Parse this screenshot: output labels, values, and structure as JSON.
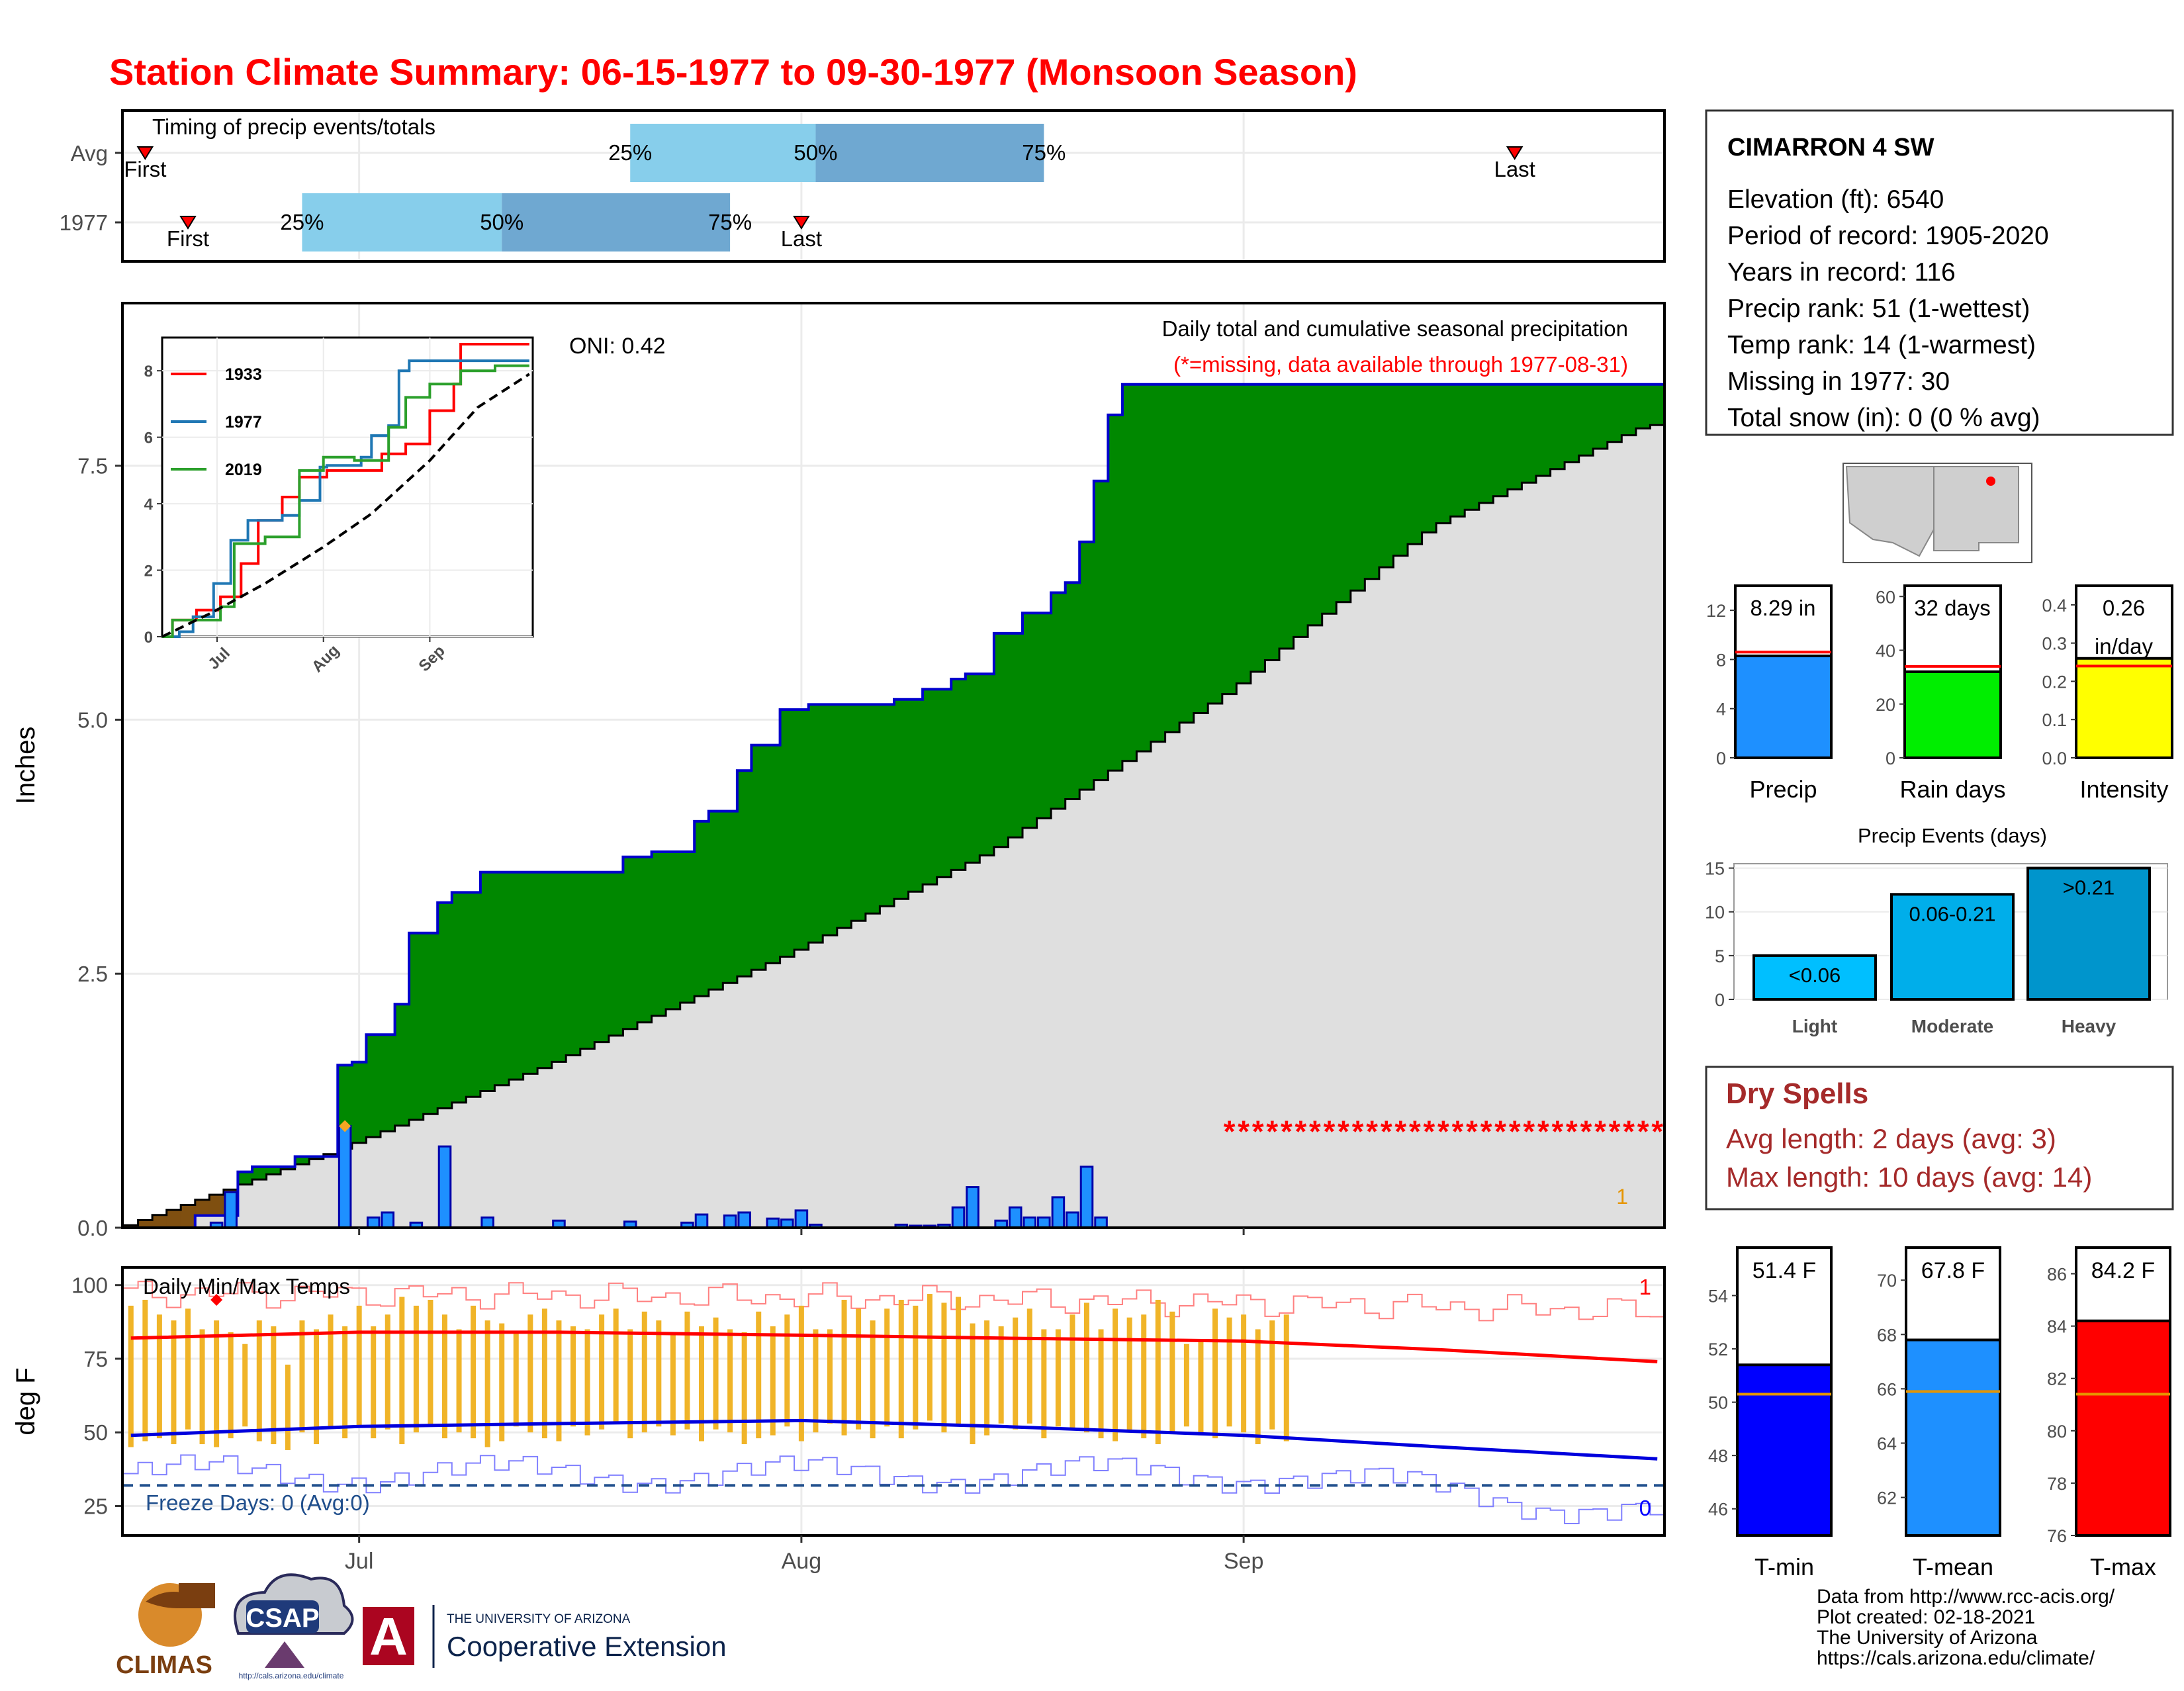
{
  "title": "Station Climate Summary: 06-15-1977 to 09-30-1977 (Monsoon Season)",
  "colors": {
    "title": "#ff0000",
    "green": "#008800",
    "blue_edge": "#0000cc",
    "bar_blue": "#1e90ff",
    "brown": "#7f4f10",
    "grey": "#dfdfdf",
    "orange": "#f0b428",
    "red": "#ff0000",
    "light_blue": "#87ceeb",
    "mid_blue": "#6fa8d1",
    "dark_red": "#a52a2a"
  },
  "timing": {
    "title": "Timing of precip events/totals",
    "rows": [
      "Avg",
      "1977"
    ],
    "first_label": "First",
    "last_label": "Last",
    "pct_labels": [
      "25%",
      "50%",
      "75%"
    ],
    "avg": {
      "first": "06-16",
      "p25": "07-20",
      "p50": "08-02",
      "p75": "08-18",
      "last": "09-20"
    },
    "y1977": {
      "first": "06-19",
      "p25": "06-27",
      "p50": "07-11",
      "p75": "07-27",
      "last": "08-01"
    }
  },
  "precip_panel": {
    "ylabel": "Inches",
    "y_ticks": [
      "0.0",
      "2.5",
      "5.0",
      "7.5"
    ],
    "x_ticks": [
      "Jul",
      "Aug",
      "Sep"
    ],
    "oni": "ONI: 0.42",
    "subtitle": "Daily total and cumulative seasonal precipitation",
    "missing_note": "(*=missing, data available through 1977-08-31)",
    "corner_value": "1",
    "missing_marker": "*"
  },
  "inset": {
    "y_ticks": [
      "0",
      "2",
      "4",
      "6",
      "8"
    ],
    "x_ticks": [
      "Jul",
      "Aug",
      "Sep"
    ],
    "legend": [
      "1933",
      "1977",
      "2019"
    ],
    "legend_colors": [
      "#ff0000",
      "#1f77b4",
      "#2ca02c"
    ]
  },
  "temp_panel": {
    "ylabel": "deg F",
    "title": "Daily Min/Max Temps",
    "y_ticks": [
      "25",
      "50",
      "75",
      "100"
    ],
    "freeze_label": "Freeze Days: 0 (Avg:0)",
    "right_top": "1",
    "right_bottom": "0"
  },
  "station": {
    "name": "CIMARRON 4 SW",
    "lines": [
      "Elevation (ft): 6540",
      "Period of record: 1905-2020",
      "Years in record: 116",
      "Precip rank: 51 (1-wettest)",
      "Temp rank: 14 (1-warmest)",
      "Missing in 1977: 30",
      "Total snow (in): 0 (0 % avg)"
    ]
  },
  "precip_gauges": [
    {
      "name": "Precip",
      "top_label": "8.29 in",
      "top_label2": "",
      "ticks": [
        "0",
        "4",
        "8",
        "12"
      ],
      "value": 8.29,
      "avg": 8.6,
      "max": 14,
      "color": "#1e90ff"
    },
    {
      "name": "Rain days",
      "top_label": "32 days",
      "top_label2": "",
      "ticks": [
        "0",
        "20",
        "40",
        "60"
      ],
      "value": 32,
      "avg": 34,
      "max": 64,
      "color": "#00ee00"
    },
    {
      "name": "Intensity",
      "top_label": "0.26",
      "top_label2": "in/day",
      "ticks": [
        "0.0",
        "0.1",
        "0.2",
        "0.3",
        "0.4"
      ],
      "value": 0.26,
      "avg": 0.24,
      "max": 0.45,
      "color": "#ffff00"
    }
  ],
  "events": {
    "title": "Precip Events (days)",
    "y_ticks": [
      "0",
      "5",
      "10",
      "15"
    ],
    "categories": [
      "Light",
      "Moderate",
      "Heavy"
    ],
    "labels": [
      "<0.06",
      "0.06-0.21",
      ">0.21"
    ],
    "values": [
      5,
      12,
      15
    ],
    "colors": [
      "#00bfff",
      "#00aeea",
      "#0095cc"
    ]
  },
  "dry_spells": {
    "title": "Dry Spells",
    "line1": "Avg length: 2 days (avg: 3)",
    "line2": "Max length: 10 days (avg: 14)"
  },
  "temp_gauges": [
    {
      "name": "T-min",
      "top_label": "51.4 F",
      "ticks": [
        "46",
        "48",
        "50",
        "52",
        "54"
      ],
      "value": 51.4,
      "avg": 50.3,
      "min": 45,
      "max": 55.8,
      "color": "#0000ff"
    },
    {
      "name": "T-mean",
      "top_label": "67.8 F",
      "ticks": [
        "62",
        "64",
        "66",
        "68",
        "70"
      ],
      "value": 67.8,
      "avg": 65.9,
      "min": 60.6,
      "max": 71.2,
      "color": "#1e90ff"
    },
    {
      "name": "T-max",
      "top_label": "84.2 F",
      "ticks": [
        "76",
        "78",
        "80",
        "82",
        "84",
        "86"
      ],
      "value": 84.2,
      "avg": 81.4,
      "min": 76,
      "max": 87,
      "color": "#ff0000"
    }
  ],
  "footer": {
    "lines": [
      "Data from http://www.rcc-acis.org/",
      "Plot created: 02-18-2021",
      "The University of Arizona",
      "https://cals.arizona.edu/climate/"
    ],
    "climas": "CLIMAS",
    "csap": "CSAP",
    "csap_url": "http://cals.arizona.edu/climate",
    "ua_small": "THE UNIVERSITY OF ARIZONA",
    "ua_big": "Cooperative Extension",
    "ua_letter": "A"
  },
  "chart_data": [
    {
      "type": "area",
      "title": "Daily total and cumulative seasonal precipitation",
      "ylabel": "Inches",
      "ylim": [
        0,
        9.1
      ],
      "x_range": [
        "06-15",
        "09-30"
      ],
      "series": [
        {
          "name": "Cumulative 1977",
          "x": [
            "06-15",
            "06-20",
            "06-23",
            "06-24",
            "06-27",
            "06-30",
            "07-01",
            "07-02",
            "07-04",
            "07-05",
            "07-07",
            "07-08",
            "07-10",
            "07-15",
            "07-20",
            "07-22",
            "07-25",
            "07-26",
            "07-28",
            "07-29",
            "07-31",
            "08-02",
            "08-05",
            "08-08",
            "08-10",
            "08-12",
            "08-13",
            "08-15",
            "08-17",
            "08-19",
            "08-20",
            "08-21",
            "08-22",
            "08-23",
            "08-24",
            "08-25",
            "08-26",
            "09-30"
          ],
          "values": [
            0,
            0.12,
            0.55,
            0.6,
            0.7,
            1.6,
            1.63,
            1.9,
            2.2,
            2.9,
            3.2,
            3.3,
            3.5,
            3.5,
            3.65,
            3.7,
            4.0,
            4.1,
            4.5,
            4.75,
            5.1,
            5.15,
            5.15,
            5.2,
            5.3,
            5.4,
            5.45,
            5.85,
            6.05,
            6.25,
            6.35,
            6.75,
            7.35,
            8.0,
            8.3,
            8.3,
            8.3,
            8.3
          ]
        },
        {
          "name": "Average cumulative",
          "x": [
            "06-15",
            "06-30",
            "07-15",
            "08-01",
            "08-15",
            "09-01",
            "09-15",
            "09-30"
          ],
          "values": [
            0,
            0.75,
            1.6,
            2.7,
            3.7,
            5.3,
            6.9,
            7.9
          ]
        }
      ],
      "daily_x": [
        "06-21",
        "06-22",
        "06-30",
        "07-02",
        "07-03",
        "07-05",
        "07-07",
        "07-10",
        "07-15",
        "07-20",
        "07-24",
        "07-25",
        "07-27",
        "07-28",
        "07-30",
        "07-31",
        "08-01",
        "08-02",
        "08-08",
        "08-09",
        "08-10",
        "08-11",
        "08-12",
        "08-13",
        "08-15",
        "08-16",
        "08-17",
        "08-18",
        "08-19",
        "08-20",
        "08-21",
        "08-22"
      ],
      "daily_values": [
        0.05,
        0.35,
        1.0,
        0.1,
        0.15,
        0.05,
        0.8,
        0.1,
        0.07,
        0.06,
        0.05,
        0.13,
        0.12,
        0.15,
        0.09,
        0.08,
        0.17,
        0.03,
        0.03,
        0.02,
        0.02,
        0.03,
        0.2,
        0.4,
        0.07,
        0.2,
        0.1,
        0.1,
        0.3,
        0.15,
        0.6,
        0.1
      ],
      "missing_from": "08-31"
    },
    {
      "type": "line",
      "title": "",
      "ylim": [
        0,
        8.8
      ],
      "x_range": [
        "06-15",
        "09-30"
      ],
      "series": [
        {
          "name": "1933",
          "x": [
            "06-15",
            "06-18",
            "06-25",
            "07-02",
            "07-08",
            "07-13",
            "07-20",
            "07-25",
            "08-02",
            "08-10",
            "08-18",
            "08-25",
            "09-01",
            "09-08",
            "09-10",
            "09-30"
          ],
          "values": [
            0,
            0.5,
            0.8,
            1.2,
            2.2,
            3.5,
            4.2,
            4.8,
            5.0,
            5.0,
            5.5,
            5.8,
            6.8,
            7.6,
            8.8,
            8.8
          ]
        },
        {
          "name": "1977",
          "x": [
            "06-15",
            "06-20",
            "06-24",
            "06-30",
            "07-05",
            "07-10",
            "07-20",
            "07-25",
            "07-31",
            "08-02",
            "08-12",
            "08-15",
            "08-20",
            "08-23",
            "08-26",
            "09-30"
          ],
          "values": [
            0,
            0.15,
            0.6,
            1.6,
            2.9,
            3.5,
            3.65,
            4.1,
            5.1,
            5.15,
            5.4,
            6.05,
            6.35,
            8.0,
            8.3,
            8.3
          ]
        },
        {
          "name": "2019",
          "x": [
            "06-15",
            "06-18",
            "06-25",
            "07-02",
            "07-06",
            "07-15",
            "07-25",
            "08-01",
            "08-10",
            "08-20",
            "08-25",
            "09-01",
            "09-10",
            "09-20",
            "09-30"
          ],
          "values": [
            0,
            0.5,
            0.5,
            0.9,
            2.8,
            3.0,
            5.0,
            5.4,
            5.3,
            6.3,
            7.2,
            7.6,
            8.0,
            8.15,
            8.15
          ]
        },
        {
          "name": "Average",
          "x": [
            "06-15",
            "06-30",
            "07-15",
            "08-01",
            "08-15",
            "09-01",
            "09-15",
            "09-30"
          ],
          "values": [
            0,
            0.75,
            1.6,
            2.7,
            3.7,
            5.3,
            6.9,
            7.9
          ]
        }
      ]
    },
    {
      "type": "bar",
      "title": "Daily Min/Max Temps",
      "ylabel": "deg F",
      "ylim": [
        15,
        106
      ],
      "x_range": [
        "06-15",
        "09-30"
      ],
      "bars_min": [
        45,
        47,
        48,
        46,
        51,
        46,
        45,
        48,
        52,
        47,
        46,
        44,
        50,
        46,
        52,
        48,
        52,
        48,
        51,
        46,
        50,
        52,
        48,
        50,
        48,
        45,
        47,
        52,
        50,
        48,
        47,
        52,
        49,
        51,
        53,
        48,
        50,
        52,
        49,
        51,
        47,
        51,
        50,
        46,
        48,
        49,
        52,
        47,
        50,
        53,
        49,
        51,
        48,
        52,
        48,
        51,
        54,
        50,
        52,
        46,
        49,
        53,
        51,
        53,
        48,
        52,
        51,
        50,
        48,
        47,
        50,
        48,
        46,
        50,
        52,
        49,
        48,
        52,
        50,
        46,
        51,
        47
      ],
      "bars_max": [
        93,
        95,
        90,
        88,
        92,
        85,
        88,
        84,
        80,
        88,
        86,
        73,
        88,
        85,
        90,
        86,
        93,
        86,
        90,
        96,
        93,
        95,
        90,
        85,
        93,
        88,
        87,
        84,
        90,
        92,
        88,
        86,
        85,
        90,
        92,
        85,
        91,
        88,
        84,
        91,
        86,
        89,
        85,
        84,
        91,
        86,
        90,
        93,
        85,
        85,
        95,
        92,
        88,
        92,
        95,
        93,
        97,
        94,
        96,
        87,
        88,
        86,
        89,
        92,
        85,
        85,
        90,
        94,
        85,
        92,
        89,
        90,
        95,
        91,
        80,
        81,
        92,
        89,
        90,
        85,
        88,
        90
      ],
      "series": [
        {
          "name": "Avg max",
          "x": [
            "06-15",
            "07-01",
            "07-15",
            "08-01",
            "08-15",
            "09-01",
            "09-15",
            "09-30"
          ],
          "values": [
            82,
            84,
            84,
            83,
            82,
            81,
            78,
            74
          ]
        },
        {
          "name": "Avg min",
          "x": [
            "06-15",
            "07-01",
            "07-15",
            "08-01",
            "08-15",
            "09-01",
            "09-15",
            "09-30"
          ],
          "values": [
            49,
            52,
            53,
            54,
            52,
            49,
            45,
            41
          ]
        }
      ],
      "freeze_line": 32
    },
    {
      "type": "bar",
      "categories": [
        "Light",
        "Moderate",
        "Heavy"
      ],
      "values": [
        5,
        12,
        15
      ],
      "ylim": [
        0,
        15.5
      ]
    }
  ]
}
